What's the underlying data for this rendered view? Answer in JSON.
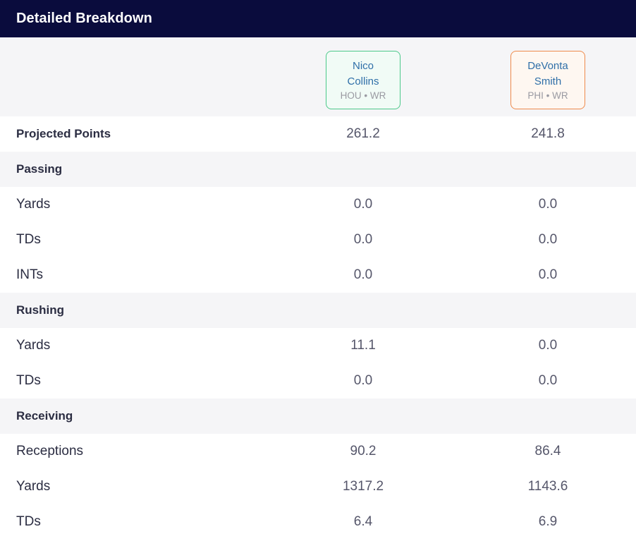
{
  "header": {
    "title": "Detailed Breakdown"
  },
  "players": [
    {
      "name_line1": "Nico",
      "name_line2": "Collins",
      "meta": "HOU • WR",
      "accent": "#4cc98a"
    },
    {
      "name_line1": "DeVonta",
      "name_line2": "Smith",
      "meta": "PHI • WR",
      "accent": "#ee8a4c"
    }
  ],
  "projected": {
    "label": "Projected Points",
    "values": [
      "261.2",
      "241.8"
    ]
  },
  "passing": {
    "label": "Passing",
    "rows": [
      {
        "label": "Yards",
        "values": [
          "0.0",
          "0.0"
        ]
      },
      {
        "label": "TDs",
        "values": [
          "0.0",
          "0.0"
        ]
      },
      {
        "label": "INTs",
        "values": [
          "0.0",
          "0.0"
        ]
      }
    ]
  },
  "rushing": {
    "label": "Rushing",
    "rows": [
      {
        "label": "Yards",
        "values": [
          "11.1",
          "0.0"
        ]
      },
      {
        "label": "TDs",
        "values": [
          "0.0",
          "0.0"
        ]
      }
    ]
  },
  "receiving": {
    "label": "Receiving",
    "rows": [
      {
        "label": "Receptions",
        "values": [
          "90.2",
          "86.4"
        ]
      },
      {
        "label": "Yards",
        "values": [
          "1317.2",
          "1143.6"
        ]
      },
      {
        "label": "TDs",
        "values": [
          "6.4",
          "6.9"
        ]
      }
    ]
  }
}
